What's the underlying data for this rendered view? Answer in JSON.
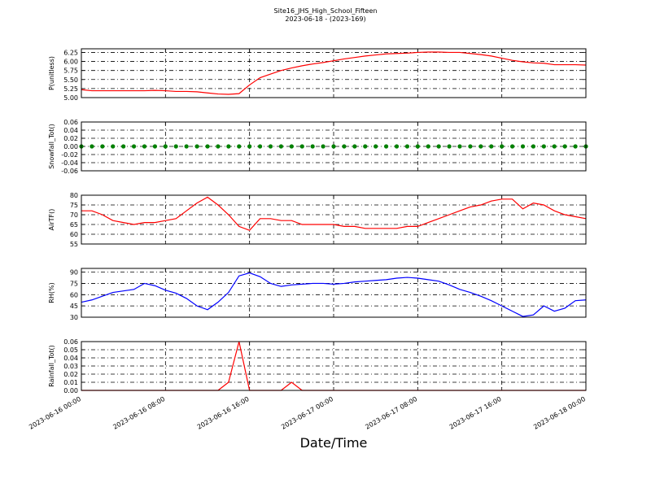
{
  "chart_data": [
    {
      "type": "line",
      "title": "Site16_JHS_High_School_Fifteen",
      "subtitle": "2023-06-18 - (2023-169)",
      "ylabel": "P(unitless)",
      "color": "#ff0000",
      "grid": true,
      "xtick_labels": false,
      "xlim": [
        "2023-06-16 00:00",
        "2023-06-18 00:00"
      ],
      "xticks": [
        "2023-06-16 00:00",
        "2023-06-16 08:00",
        "2023-06-16 16:00",
        "2023-06-17 00:00",
        "2023-06-17 08:00",
        "2023-06-17 16:00",
        "2023-06-18 00:00"
      ],
      "ylim": [
        5.0,
        6.35
      ],
      "yticks": [
        {
          "value": 5.0,
          "label": "5.00"
        },
        {
          "value": 5.25,
          "label": "5.25"
        },
        {
          "value": 5.5,
          "label": "5.50"
        },
        {
          "value": 5.75,
          "label": "5.75"
        },
        {
          "value": 6.0,
          "label": "6.00"
        },
        {
          "value": 6.25,
          "label": "6.25"
        }
      ],
      "x": [
        "2023-06-16 00:00",
        "2023-06-16 01:00",
        "2023-06-16 02:00",
        "2023-06-16 03:00",
        "2023-06-16 04:00",
        "2023-06-16 05:00",
        "2023-06-16 06:00",
        "2023-06-16 07:00",
        "2023-06-16 08:00",
        "2023-06-16 09:00",
        "2023-06-16 10:00",
        "2023-06-16 11:00",
        "2023-06-16 12:00",
        "2023-06-16 13:00",
        "2023-06-16 14:00",
        "2023-06-16 15:00",
        "2023-06-16 16:00",
        "2023-06-16 17:00",
        "2023-06-16 18:00",
        "2023-06-16 19:00",
        "2023-06-16 20:00",
        "2023-06-16 21:00",
        "2023-06-16 22:00",
        "2023-06-16 23:00",
        "2023-06-17 00:00",
        "2023-06-17 01:00",
        "2023-06-17 02:00",
        "2023-06-17 03:00",
        "2023-06-17 04:00",
        "2023-06-17 05:00",
        "2023-06-17 06:00",
        "2023-06-17 07:00",
        "2023-06-17 08:00",
        "2023-06-17 09:00",
        "2023-06-17 10:00",
        "2023-06-17 11:00",
        "2023-06-17 12:00",
        "2023-06-17 13:00",
        "2023-06-17 14:00",
        "2023-06-17 15:00",
        "2023-06-17 16:00",
        "2023-06-17 17:00",
        "2023-06-17 18:00",
        "2023-06-17 19:00",
        "2023-06-17 20:00",
        "2023-06-17 21:00",
        "2023-06-17 22:00",
        "2023-06-17 23:00",
        "2023-06-18 00:00"
      ],
      "values": [
        5.22,
        5.19,
        5.19,
        5.19,
        5.19,
        5.19,
        5.19,
        5.2,
        5.19,
        5.17,
        5.17,
        5.16,
        5.13,
        5.1,
        5.09,
        5.11,
        5.35,
        5.55,
        5.65,
        5.75,
        5.82,
        5.88,
        5.93,
        5.97,
        6.02,
        6.07,
        6.11,
        6.15,
        6.18,
        6.21,
        6.22,
        6.23,
        6.25,
        6.26,
        6.26,
        6.25,
        6.25,
        6.22,
        6.19,
        6.15,
        6.09,
        6.03,
        5.99,
        5.96,
        5.95,
        5.91,
        5.91,
        5.91,
        5.9
      ]
    },
    {
      "type": "scatter",
      "ylabel": "Snowfall_Tot()",
      "color": "#008000",
      "grid": true,
      "xtick_labels": false,
      "xlim": [
        "2023-06-16 00:00",
        "2023-06-18 00:00"
      ],
      "xticks": [
        "2023-06-16 00:00",
        "2023-06-16 08:00",
        "2023-06-16 16:00",
        "2023-06-17 00:00",
        "2023-06-17 08:00",
        "2023-06-17 16:00",
        "2023-06-18 00:00"
      ],
      "ylim": [
        -0.06,
        0.06
      ],
      "yticks": [
        {
          "value": -0.06,
          "label": "-0.06"
        },
        {
          "value": -0.04,
          "label": "-0.04"
        },
        {
          "value": -0.02,
          "label": "-0.02"
        },
        {
          "value": 0,
          "label": "0.00"
        },
        {
          "value": 0.02,
          "label": "0.02"
        },
        {
          "value": 0.04,
          "label": "0.04"
        },
        {
          "value": 0.06,
          "label": "0.06"
        }
      ],
      "x": [
        "2023-06-16 00:00",
        "2023-06-16 01:00",
        "2023-06-16 02:00",
        "2023-06-16 03:00",
        "2023-06-16 04:00",
        "2023-06-16 05:00",
        "2023-06-16 06:00",
        "2023-06-16 07:00",
        "2023-06-16 08:00",
        "2023-06-16 09:00",
        "2023-06-16 10:00",
        "2023-06-16 11:00",
        "2023-06-16 12:00",
        "2023-06-16 13:00",
        "2023-06-16 14:00",
        "2023-06-16 15:00",
        "2023-06-16 16:00",
        "2023-06-16 17:00",
        "2023-06-16 18:00",
        "2023-06-16 19:00",
        "2023-06-16 20:00",
        "2023-06-16 21:00",
        "2023-06-16 22:00",
        "2023-06-16 23:00",
        "2023-06-17 00:00",
        "2023-06-17 01:00",
        "2023-06-17 02:00",
        "2023-06-17 03:00",
        "2023-06-17 04:00",
        "2023-06-17 05:00",
        "2023-06-17 06:00",
        "2023-06-17 07:00",
        "2023-06-17 08:00",
        "2023-06-17 09:00",
        "2023-06-17 10:00",
        "2023-06-17 11:00",
        "2023-06-17 12:00",
        "2023-06-17 13:00",
        "2023-06-17 14:00",
        "2023-06-17 15:00",
        "2023-06-17 16:00",
        "2023-06-17 17:00",
        "2023-06-17 18:00",
        "2023-06-17 19:00",
        "2023-06-17 20:00",
        "2023-06-17 21:00",
        "2023-06-17 22:00",
        "2023-06-17 23:00",
        "2023-06-18 00:00"
      ],
      "values": [
        0,
        0,
        0,
        0,
        0,
        0,
        0,
        0,
        0,
        0,
        0,
        0,
        0,
        0,
        0,
        0,
        0,
        0,
        0,
        0,
        0,
        0,
        0,
        0,
        0,
        0,
        0,
        0,
        0,
        0,
        0,
        0,
        0,
        0,
        0,
        0,
        0,
        0,
        0,
        0,
        0,
        0,
        0,
        0,
        0,
        0,
        0,
        0,
        0
      ]
    },
    {
      "type": "line",
      "ylabel": "AirTF()",
      "color": "#ff0000",
      "grid": true,
      "xtick_labels": false,
      "xlim": [
        "2023-06-16 00:00",
        "2023-06-18 00:00"
      ],
      "xticks": [
        "2023-06-16 00:00",
        "2023-06-16 08:00",
        "2023-06-16 16:00",
        "2023-06-17 00:00",
        "2023-06-17 08:00",
        "2023-06-17 16:00",
        "2023-06-18 00:00"
      ],
      "ylim": [
        55,
        80
      ],
      "yticks": [
        55,
        60,
        65,
        70,
        75,
        80
      ],
      "x": [
        "2023-06-16 00:00",
        "2023-06-16 01:00",
        "2023-06-16 02:00",
        "2023-06-16 03:00",
        "2023-06-16 04:00",
        "2023-06-16 05:00",
        "2023-06-16 06:00",
        "2023-06-16 07:00",
        "2023-06-16 08:00",
        "2023-06-16 09:00",
        "2023-06-16 10:00",
        "2023-06-16 11:00",
        "2023-06-16 12:00",
        "2023-06-16 13:00",
        "2023-06-16 14:00",
        "2023-06-16 15:00",
        "2023-06-16 16:00",
        "2023-06-16 17:00",
        "2023-06-16 18:00",
        "2023-06-16 19:00",
        "2023-06-16 20:00",
        "2023-06-16 21:00",
        "2023-06-16 22:00",
        "2023-06-16 23:00",
        "2023-06-17 00:00",
        "2023-06-17 01:00",
        "2023-06-17 02:00",
        "2023-06-17 03:00",
        "2023-06-17 04:00",
        "2023-06-17 05:00",
        "2023-06-17 06:00",
        "2023-06-17 07:00",
        "2023-06-17 08:00",
        "2023-06-17 09:00",
        "2023-06-17 10:00",
        "2023-06-17 11:00",
        "2023-06-17 12:00",
        "2023-06-17 13:00",
        "2023-06-17 14:00",
        "2023-06-17 15:00",
        "2023-06-17 16:00",
        "2023-06-17 17:00",
        "2023-06-17 18:00",
        "2023-06-17 19:00",
        "2023-06-17 20:00",
        "2023-06-17 21:00",
        "2023-06-17 22:00",
        "2023-06-17 23:00",
        "2023-06-18 00:00"
      ],
      "values": [
        72,
        72,
        70,
        67,
        66,
        65,
        66,
        66,
        67,
        68,
        72,
        76,
        79,
        75,
        70,
        64,
        62,
        68,
        68,
        67,
        67,
        65,
        65,
        65,
        65,
        64,
        64,
        63,
        63,
        63,
        63,
        64,
        64,
        66,
        68,
        70,
        72,
        74,
        75,
        77,
        78,
        78,
        73,
        76,
        75,
        72,
        70,
        69,
        68
      ]
    },
    {
      "type": "line",
      "ylabel": "RH(%)",
      "color": "#0000ff",
      "grid": true,
      "xtick_labels": false,
      "xlim": [
        "2023-06-16 00:00",
        "2023-06-18 00:00"
      ],
      "xticks": [
        "2023-06-16 00:00",
        "2023-06-16 08:00",
        "2023-06-16 16:00",
        "2023-06-17 00:00",
        "2023-06-17 08:00",
        "2023-06-17 16:00",
        "2023-06-18 00:00"
      ],
      "ylim": [
        30,
        95
      ],
      "yticks": [
        30,
        45,
        60,
        75,
        90
      ],
      "x": [
        "2023-06-16 00:00",
        "2023-06-16 01:00",
        "2023-06-16 02:00",
        "2023-06-16 03:00",
        "2023-06-16 04:00",
        "2023-06-16 05:00",
        "2023-06-16 06:00",
        "2023-06-16 07:00",
        "2023-06-16 08:00",
        "2023-06-16 09:00",
        "2023-06-16 10:00",
        "2023-06-16 11:00",
        "2023-06-16 12:00",
        "2023-06-16 13:00",
        "2023-06-16 14:00",
        "2023-06-16 15:00",
        "2023-06-16 16:00",
        "2023-06-16 17:00",
        "2023-06-16 18:00",
        "2023-06-16 19:00",
        "2023-06-16 20:00",
        "2023-06-16 21:00",
        "2023-06-16 22:00",
        "2023-06-16 23:00",
        "2023-06-17 00:00",
        "2023-06-17 01:00",
        "2023-06-17 02:00",
        "2023-06-17 03:00",
        "2023-06-17 04:00",
        "2023-06-17 05:00",
        "2023-06-17 06:00",
        "2023-06-17 07:00",
        "2023-06-17 08:00",
        "2023-06-17 09:00",
        "2023-06-17 10:00",
        "2023-06-17 11:00",
        "2023-06-17 12:00",
        "2023-06-17 13:00",
        "2023-06-17 14:00",
        "2023-06-17 15:00",
        "2023-06-17 16:00",
        "2023-06-17 17:00",
        "2023-06-17 18:00",
        "2023-06-17 19:00",
        "2023-06-17 20:00",
        "2023-06-17 21:00",
        "2023-06-17 22:00",
        "2023-06-17 23:00",
        "2023-06-18 00:00"
      ],
      "values": [
        50,
        53,
        58,
        63,
        65,
        67,
        75,
        72,
        66,
        62,
        55,
        45,
        40,
        50,
        63,
        85,
        89,
        84,
        75,
        71,
        73,
        74,
        75,
        75,
        74,
        75,
        77,
        78,
        79,
        80,
        82,
        83,
        82,
        80,
        78,
        73,
        67,
        63,
        58,
        52,
        45,
        38,
        31,
        33,
        45,
        38,
        42,
        52,
        53
      ]
    },
    {
      "type": "line",
      "ylabel": "Rainfall_Tot()",
      "xlabel": "Date/Time",
      "color": "#ff0000",
      "grid": true,
      "xtick_labels": true,
      "xlim": [
        "2023-06-16 00:00",
        "2023-06-18 00:00"
      ],
      "xticks": [
        "2023-06-16 00:00",
        "2023-06-16 08:00",
        "2023-06-16 16:00",
        "2023-06-17 00:00",
        "2023-06-17 08:00",
        "2023-06-17 16:00",
        "2023-06-18 00:00"
      ],
      "ylim": [
        0,
        0.06
      ],
      "yticks": [
        {
          "value": 0,
          "label": "0.00"
        },
        {
          "value": 0.01,
          "label": "0.01"
        },
        {
          "value": 0.02,
          "label": "0.02"
        },
        {
          "value": 0.03,
          "label": "0.03"
        },
        {
          "value": 0.04,
          "label": "0.04"
        },
        {
          "value": 0.05,
          "label": "0.05"
        },
        {
          "value": 0.06,
          "label": "0.06"
        }
      ],
      "x": [
        "2023-06-16 00:00",
        "2023-06-16 01:00",
        "2023-06-16 02:00",
        "2023-06-16 03:00",
        "2023-06-16 04:00",
        "2023-06-16 05:00",
        "2023-06-16 06:00",
        "2023-06-16 07:00",
        "2023-06-16 08:00",
        "2023-06-16 09:00",
        "2023-06-16 10:00",
        "2023-06-16 11:00",
        "2023-06-16 12:00",
        "2023-06-16 13:00",
        "2023-06-16 14:00",
        "2023-06-16 15:00",
        "2023-06-16 16:00",
        "2023-06-16 17:00",
        "2023-06-16 18:00",
        "2023-06-16 19:00",
        "2023-06-16 20:00",
        "2023-06-16 21:00",
        "2023-06-16 22:00",
        "2023-06-16 23:00",
        "2023-06-17 00:00",
        "2023-06-17 01:00",
        "2023-06-17 02:00",
        "2023-06-17 03:00",
        "2023-06-17 04:00",
        "2023-06-17 05:00",
        "2023-06-17 06:00",
        "2023-06-17 07:00",
        "2023-06-17 08:00",
        "2023-06-17 09:00",
        "2023-06-17 10:00",
        "2023-06-17 11:00",
        "2023-06-17 12:00",
        "2023-06-17 13:00",
        "2023-06-17 14:00",
        "2023-06-17 15:00",
        "2023-06-17 16:00",
        "2023-06-17 17:00",
        "2023-06-17 18:00",
        "2023-06-17 19:00",
        "2023-06-17 20:00",
        "2023-06-17 21:00",
        "2023-06-17 22:00",
        "2023-06-17 23:00",
        "2023-06-18 00:00"
      ],
      "values": [
        0,
        0,
        0,
        0,
        0,
        0,
        0,
        0,
        0,
        0,
        0,
        0,
        0,
        0,
        0.01,
        0.06,
        0,
        0,
        0,
        0,
        0.01,
        0,
        0,
        0,
        0,
        0,
        0,
        0,
        0,
        0,
        0,
        0,
        0,
        0,
        0,
        0,
        0,
        0,
        0,
        0,
        0,
        0,
        0,
        0,
        0,
        0,
        0,
        0,
        0
      ]
    }
  ]
}
